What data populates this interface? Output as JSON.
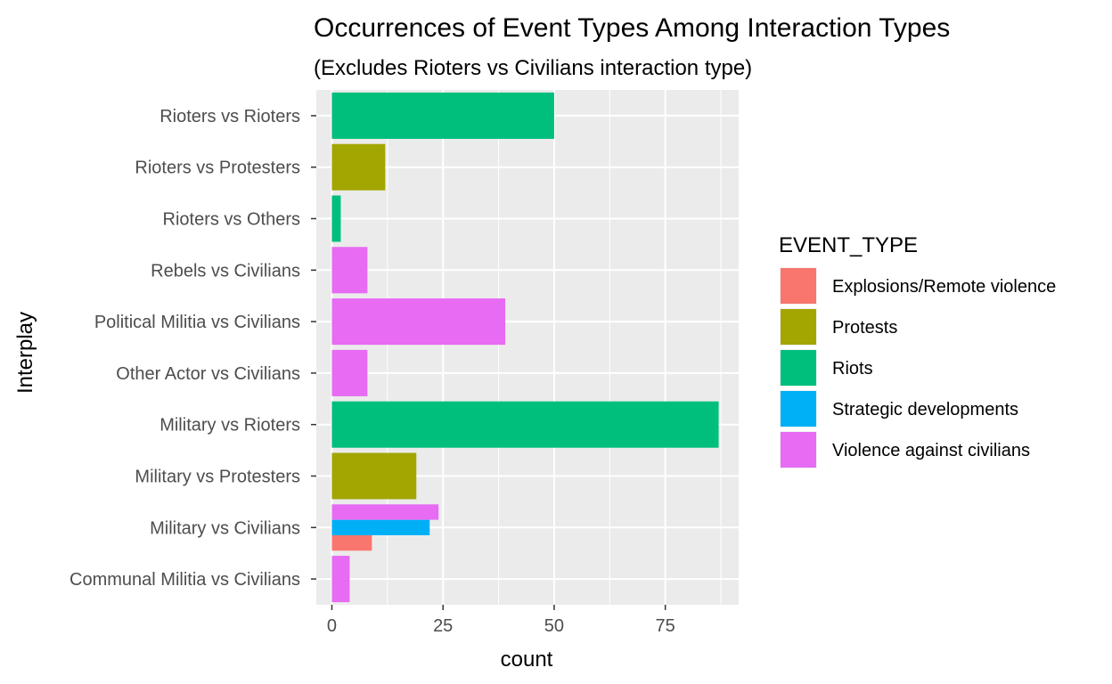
{
  "chart_data": {
    "type": "bar",
    "orientation": "horizontal",
    "position": "dodge",
    "title": "Occurrences of Event Types Among Interaction Types",
    "subtitle": "(Excludes Rioters vs Civilians interaction type)",
    "xlabel": "count",
    "ylabel": "Interplay",
    "xlim": [
      -3.5,
      91.5
    ],
    "x_ticks": [
      0,
      25,
      50,
      75
    ],
    "x_tick_labels": [
      "0",
      "25",
      "50",
      "75"
    ],
    "grid": true,
    "legend_position": "right",
    "categories": [
      "Communal Militia vs Civilians",
      "Military vs Civilians",
      "Military vs Protesters",
      "Military vs Rioters",
      "Other Actor vs Civilians",
      "Political Militia vs Civilians",
      "Rebels vs Civilians",
      "Rioters vs Others",
      "Rioters vs Protesters",
      "Rioters vs Rioters"
    ],
    "legend_title": "EVENT_TYPE",
    "series": [
      {
        "name": "Explosions/Remote violence",
        "color": "#F8766D",
        "values": [
          0,
          9,
          0,
          0,
          0,
          0,
          0,
          0,
          0,
          0
        ]
      },
      {
        "name": "Protests",
        "color": "#A3A500",
        "values": [
          0,
          0,
          19,
          0,
          0,
          0,
          0,
          0,
          12,
          0
        ]
      },
      {
        "name": "Riots",
        "color": "#00BF7D",
        "values": [
          0,
          0,
          0,
          87,
          0,
          0,
          0,
          2,
          0,
          50
        ]
      },
      {
        "name": "Strategic developments",
        "color": "#00B0F6",
        "values": [
          0,
          22,
          0,
          0,
          0,
          0,
          0,
          0,
          0,
          0
        ]
      },
      {
        "name": "Violence against civilians",
        "color": "#E76BF3",
        "values": [
          4,
          24,
          0,
          0,
          8,
          39,
          8,
          0,
          0,
          0
        ]
      }
    ]
  }
}
